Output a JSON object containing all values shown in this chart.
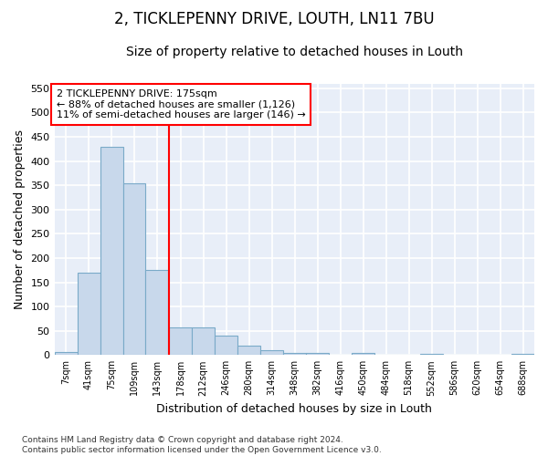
{
  "title": "2, TICKLEPENNY DRIVE, LOUTH, LN11 7BU",
  "subtitle": "Size of property relative to detached houses in Louth",
  "xlabel": "Distribution of detached houses by size in Louth",
  "ylabel": "Number of detached properties",
  "footnote": "Contains HM Land Registry data © Crown copyright and database right 2024.\nContains public sector information licensed under the Open Government Licence v3.0.",
  "bar_color": "#c8d8eb",
  "bar_edge_color": "#7aaac8",
  "annotation_text_line1": "2 TICKLEPENNY DRIVE: 175sqm",
  "annotation_text_line2": "← 88% of detached houses are smaller (1,126)",
  "annotation_text_line3": "11% of semi-detached houses are larger (146) →",
  "bin_edges": [
    7,
    41,
    75,
    109,
    143,
    178,
    212,
    246,
    280,
    314,
    348,
    382,
    416,
    450,
    484,
    518,
    552,
    586,
    620,
    654,
    688,
    722
  ],
  "bin_labels": [
    "7sqm",
    "41sqm",
    "75sqm",
    "109sqm",
    "143sqm",
    "178sqm",
    "212sqm",
    "246sqm",
    "280sqm",
    "314sqm",
    "348sqm",
    "382sqm",
    "416sqm",
    "450sqm",
    "484sqm",
    "518sqm",
    "552sqm",
    "586sqm",
    "620sqm",
    "654sqm",
    "688sqm"
  ],
  "counts": [
    7,
    170,
    430,
    355,
    175,
    57,
    57,
    40,
    20,
    10,
    5,
    4,
    0,
    4,
    0,
    0,
    2,
    0,
    0,
    0,
    2
  ],
  "ylim": [
    0,
    560
  ],
  "yticks": [
    0,
    50,
    100,
    150,
    200,
    250,
    300,
    350,
    400,
    450,
    500,
    550
  ],
  "bg_color": "#e8eef8",
  "grid_color": "#ffffff",
  "fig_bg": "#ffffff",
  "title_fontsize": 12,
  "subtitle_fontsize": 10,
  "annot_fontsize": 8,
  "ylabel_fontsize": 9,
  "xlabel_fontsize": 9,
  "tick_fontsize": 8,
  "footnote_fontsize": 6.5,
  "red_line_x": 178
}
